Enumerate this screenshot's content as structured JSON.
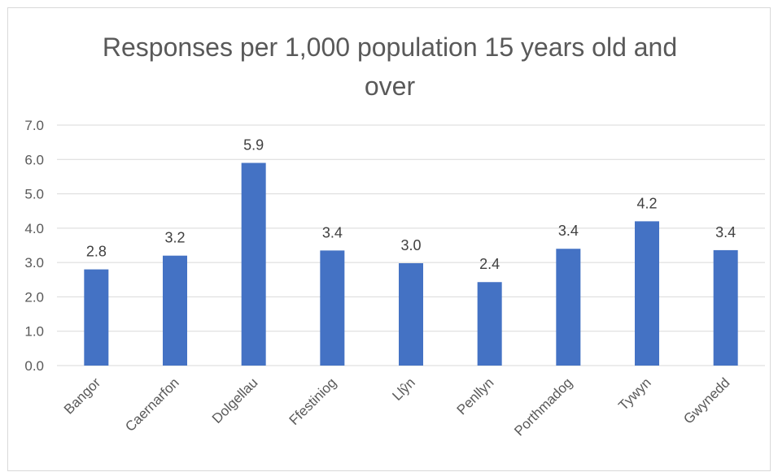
{
  "chart_data": {
    "type": "bar",
    "title_lines": [
      "Responses per 1,000 population 15 years old and",
      "over"
    ],
    "categories": [
      "Bangor",
      "Caernarfon",
      "Dolgellau",
      "Ffestiniog",
      "Llŷn",
      "Penllyn",
      "Porthmadog",
      "Tywyn",
      "Gwynedd"
    ],
    "values": [
      2.8,
      3.2,
      5.9,
      3.35,
      2.98,
      2.43,
      3.4,
      4.2,
      3.36
    ],
    "data_labels": [
      "2.8",
      "3.2",
      "5.9",
      "3.4",
      "3.0",
      "2.4",
      "3.4",
      "4.2",
      "3.4"
    ],
    "y_ticks": [
      "0.0",
      "1.0",
      "2.0",
      "3.0",
      "4.0",
      "5.0",
      "6.0",
      "7.0"
    ],
    "ylim": [
      0,
      7
    ],
    "xlabel": "",
    "ylabel": "",
    "grid": true,
    "legend": "none",
    "bar_color": "#4472c4",
    "grid_color": "#d9d9d9"
  }
}
